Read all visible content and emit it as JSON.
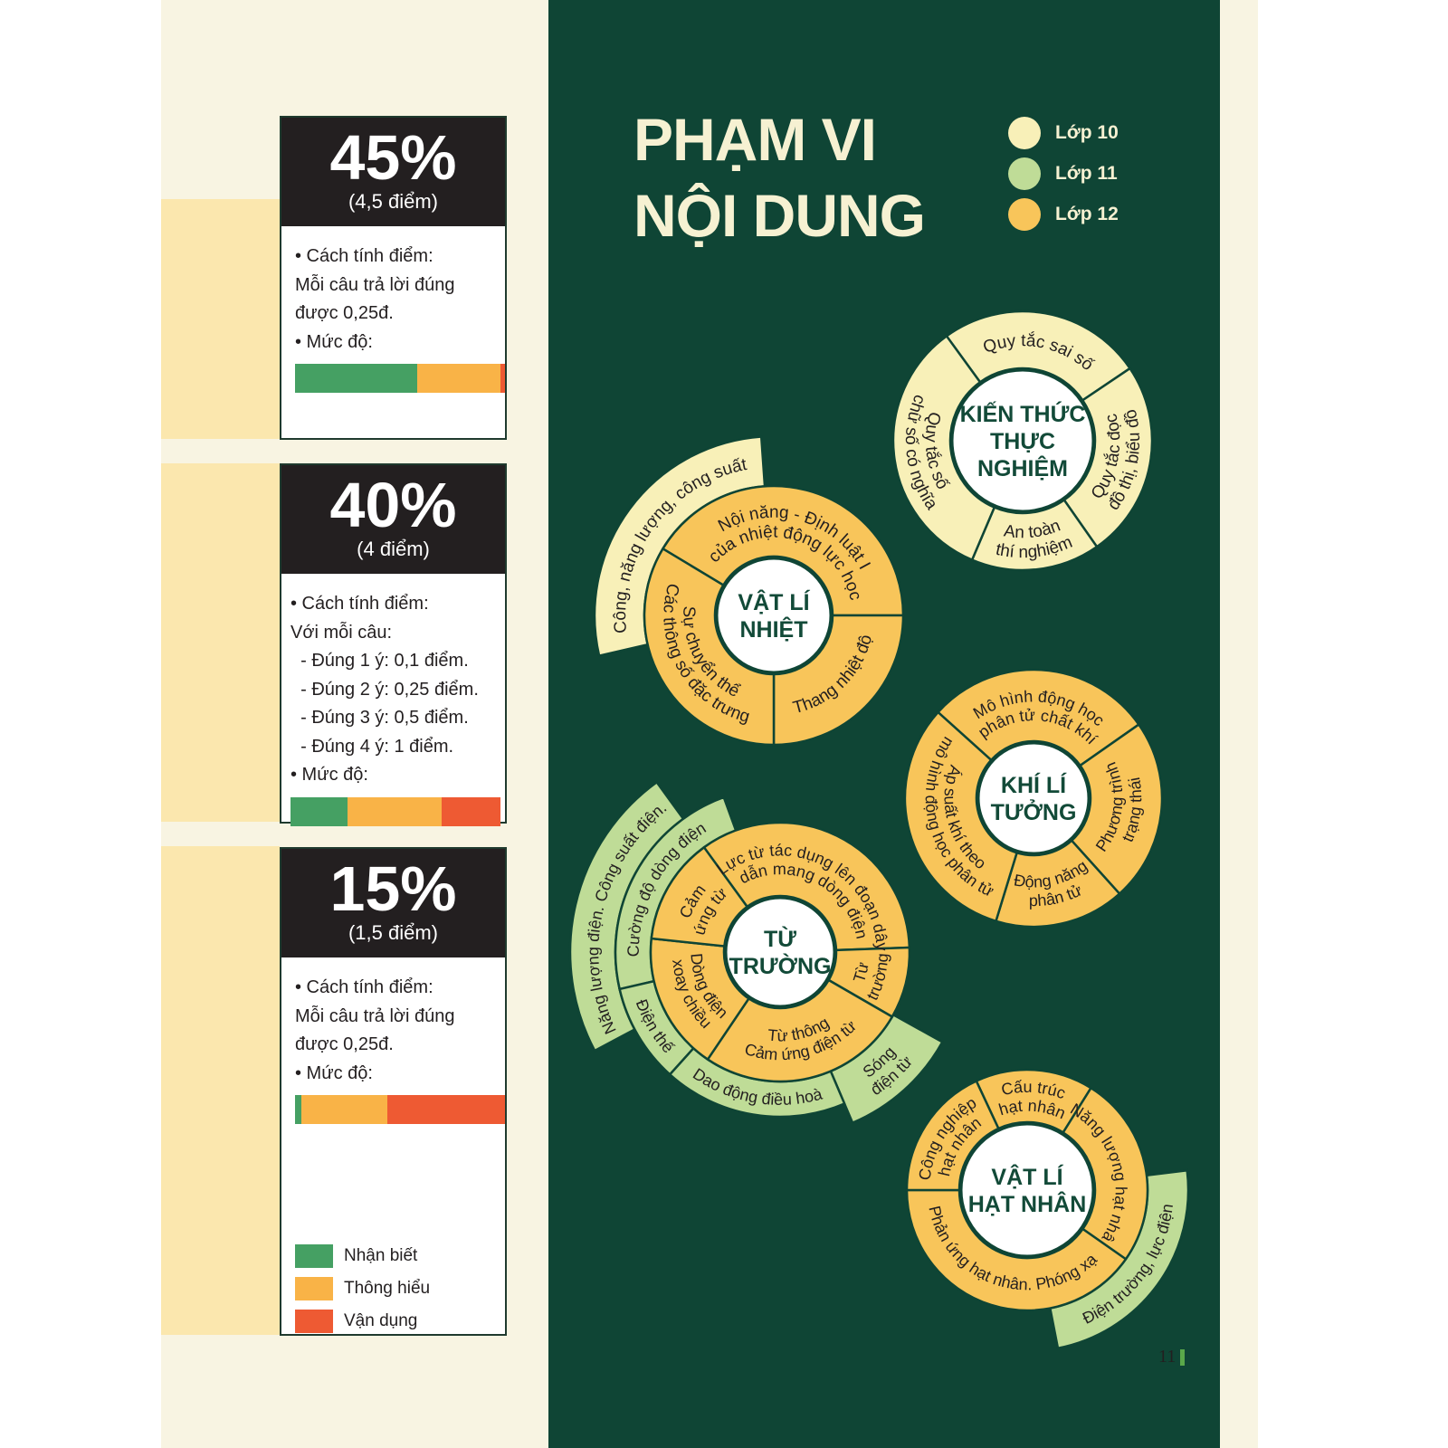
{
  "colors": {
    "background_green": "#0f4535",
    "lop10": "#f8f0b8",
    "lop11": "#bfdc97",
    "lop12": "#f8c55a",
    "nhan_biet": "#45a063",
    "thong_hieu": "#f9b347",
    "van_dung": "#ee5a33"
  },
  "cards": [
    {
      "percent": "45%",
      "points": "(4,5 điểm)",
      "lines": [
        "• Cách tính điểm:",
        "Mỗi câu trả lời đúng",
        "được 0,25đ.",
        "• Mức độ:"
      ],
      "level_bar": {
        "nhan_biet": 58,
        "thong_hieu": 40,
        "van_dung": 2
      }
    },
    {
      "percent": "40%",
      "points": "(4 điểm)",
      "lines": [
        "• Cách tính điểm:",
        "Với mỗi câu:",
        "  - Đúng 1 ý: 0,1 điểm.",
        "  - Đúng 2 ý: 0,25 điểm.",
        "  - Đúng 3 ý: 0,5 điểm.",
        "  - Đúng 4 ý: 1 điểm.",
        "• Mức độ:"
      ],
      "level_bar": {
        "nhan_biet": 27,
        "thong_hieu": 45,
        "van_dung": 28
      }
    },
    {
      "percent": "15%",
      "points": "(1,5 điểm)",
      "lines": [
        "• Cách tính điểm:",
        "Mỗi câu trả lời đúng",
        "được 0,25đ.",
        "• Mức độ:"
      ],
      "level_bar": {
        "nhan_biet": 3,
        "thong_hieu": 41,
        "van_dung": 56
      }
    }
  ],
  "level_legend": [
    {
      "key": "nhan_biet",
      "label": "Nhận biết"
    },
    {
      "key": "thong_hieu",
      "label": "Thông hiểu"
    },
    {
      "key": "van_dung",
      "label": "Vận dụng"
    }
  ],
  "title": {
    "line1": "PHẠM VI",
    "line2": "NỘI DUNG"
  },
  "grade_legend": [
    {
      "key": "lop10",
      "label": "Lớp 10"
    },
    {
      "key": "lop11",
      "label": "Lớp 11"
    },
    {
      "key": "lop12",
      "label": "Lớp 12"
    }
  ],
  "wheels": [
    {
      "title": [
        "KIẾN THỨC",
        "THỰC",
        "NGHIỆM"
      ],
      "segments": [
        {
          "lines": [
            "Quy tắc sai số"
          ],
          "level": "lop10"
        },
        {
          "lines": [
            "Quy tắc đọc",
            "đồ thị, biểu đồ"
          ],
          "level": "lop10"
        },
        {
          "lines": [
            "An toàn",
            "thí nghiệm"
          ],
          "level": "lop10"
        },
        {
          "lines": [
            "Quy tắc số",
            "chữ số có nghĩa"
          ],
          "level": "lop10"
        }
      ]
    },
    {
      "title": [
        "VẬT LÍ",
        "NHIỆT"
      ],
      "segments": [
        {
          "lines": [
            "Nội năng - Định luật I",
            "của nhiệt động lực học"
          ],
          "level": "lop12"
        },
        {
          "lines": [
            "Thang nhiệt độ"
          ],
          "level": "lop12"
        },
        {
          "lines": [
            "Sự chuyển thể",
            "Các thông số đặc trưng"
          ],
          "level": "lop12"
        },
        {
          "lines": [
            "Công, năng lượng, công suất"
          ],
          "level": "lop10"
        }
      ]
    },
    {
      "title": [
        "KHÍ LÍ",
        "TƯỞNG"
      ],
      "segments": [
        {
          "lines": [
            "Mô hình động học",
            "phân tử chất khí"
          ],
          "level": "lop12"
        },
        {
          "lines": [
            "Phương trình",
            "trạng thái"
          ],
          "level": "lop12"
        },
        {
          "lines": [
            "Động năng",
            "phân tử"
          ],
          "level": "lop12"
        },
        {
          "lines": [
            "Áp suất khí theo",
            "mô hình động học phân tử"
          ],
          "level": "lop12"
        }
      ]
    },
    {
      "title": [
        "TỪ",
        "TRƯỜNG"
      ],
      "segments": [
        {
          "lines": [
            "Lực từ tác dụng lên đoạn dây",
            "dẫn mang dòng điện"
          ],
          "level": "lop12"
        },
        {
          "lines": [
            "Từ",
            "trường"
          ],
          "level": "lop12"
        },
        {
          "lines": [
            "Từ thông",
            "Cảm ứng điện từ"
          ],
          "level": "lop12"
        },
        {
          "lines": [
            "Dòng điện",
            "xoay chiều"
          ],
          "level": "lop12"
        },
        {
          "lines": [
            "Cảm",
            "ứng từ"
          ],
          "level": "lop12"
        },
        {
          "lines": [
            "Cường độ dòng điện"
          ],
          "level": "lop11"
        },
        {
          "lines": [
            "Điện thế"
          ],
          "level": "lop11"
        },
        {
          "lines": [
            "Dao động điều hoà"
          ],
          "level": "lop11"
        },
        {
          "lines": [
            "Sóng",
            "điện từ"
          ],
          "level": "lop11"
        },
        {
          "lines": [
            "Năng lượng điện. Công suất điện."
          ],
          "level": "lop11"
        }
      ]
    },
    {
      "title": [
        "VẬT LÍ",
        "HẠT NHÂN"
      ],
      "segments": [
        {
          "lines": [
            "Cấu trúc",
            "hạt nhân"
          ],
          "level": "lop12"
        },
        {
          "lines": [
            "Năng lượng hạt nhân"
          ],
          "level": "lop12"
        },
        {
          "lines": [
            "Phản ứng hạt nhân. Phóng xạ"
          ],
          "level": "lop12"
        },
        {
          "lines": [
            "Công nghiệp",
            "hạt nhân"
          ],
          "level": "lop12"
        },
        {
          "lines": [
            "Điện trường, lực điện"
          ],
          "level": "lop11"
        }
      ]
    }
  ],
  "page_number": "11"
}
